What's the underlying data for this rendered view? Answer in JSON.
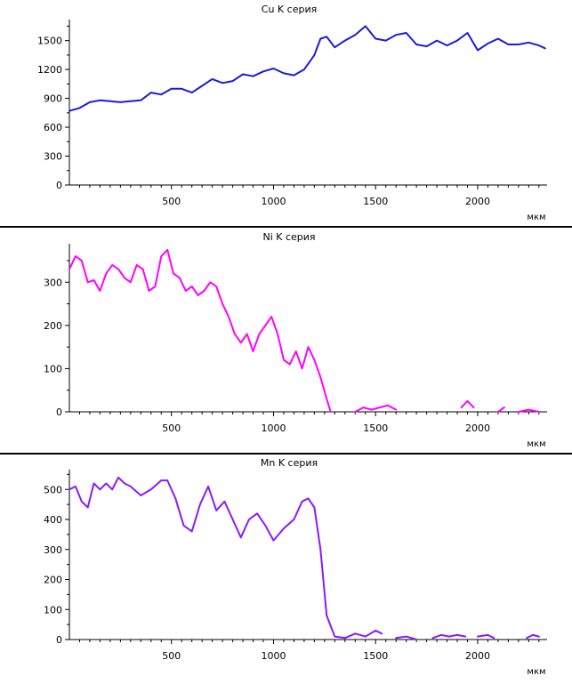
{
  "chart_data": [
    {
      "type": "line",
      "title": "Cu K серия",
      "xunit": "мкм",
      "xlim": [
        0,
        2340
      ],
      "ylim": [
        0,
        1700
      ],
      "xticks": [
        500,
        1000,
        1500,
        2000
      ],
      "yticks": [
        0,
        300,
        600,
        900,
        1200,
        1500
      ],
      "color": "#1a1adf",
      "x": [
        0,
        50,
        100,
        150,
        200,
        250,
        300,
        350,
        400,
        450,
        500,
        550,
        600,
        650,
        700,
        750,
        800,
        850,
        900,
        950,
        1000,
        1050,
        1100,
        1150,
        1200,
        1230,
        1260,
        1300,
        1350,
        1400,
        1450,
        1500,
        1550,
        1600,
        1650,
        1700,
        1750,
        1800,
        1850,
        1900,
        1950,
        2000,
        2050,
        2100,
        2150,
        2200,
        2250,
        2300,
        2330
      ],
      "y": [
        770,
        800,
        860,
        880,
        870,
        860,
        870,
        880,
        960,
        940,
        1000,
        1000,
        960,
        1030,
        1100,
        1060,
        1080,
        1150,
        1130,
        1180,
        1210,
        1160,
        1140,
        1200,
        1350,
        1520,
        1540,
        1430,
        1500,
        1560,
        1650,
        1520,
        1500,
        1560,
        1580,
        1460,
        1440,
        1500,
        1450,
        1500,
        1580,
        1400,
        1470,
        1520,
        1460,
        1460,
        1480,
        1450,
        1420
      ]
    },
    {
      "type": "line",
      "title": "Ni K серия",
      "xunit": "мкм",
      "xlim": [
        0,
        2340
      ],
      "ylim": [
        0,
        385
      ],
      "xticks": [
        500,
        1000,
        1500,
        2000
      ],
      "yticks": [
        0,
        100,
        200,
        300
      ],
      "color": "#ff00ff",
      "x": [
        0,
        30,
        60,
        90,
        120,
        150,
        180,
        210,
        240,
        270,
        300,
        330,
        360,
        390,
        420,
        450,
        480,
        510,
        540,
        570,
        600,
        630,
        660,
        690,
        720,
        750,
        780,
        810,
        840,
        870,
        900,
        930,
        960,
        990,
        1020,
        1050,
        1080,
        1110,
        1140,
        1170,
        1200,
        1230,
        1260,
        1280,
        null,
        1400,
        1440,
        1480,
        1520,
        1560,
        1600,
        null,
        1920,
        1950,
        1980,
        null,
        2100,
        2130,
        null,
        2200,
        2250,
        2300
      ],
      "y": [
        330,
        360,
        350,
        300,
        305,
        280,
        320,
        340,
        330,
        310,
        300,
        340,
        330,
        280,
        290,
        360,
        375,
        320,
        310,
        280,
        290,
        270,
        280,
        300,
        290,
        250,
        220,
        180,
        160,
        180,
        140,
        180,
        200,
        220,
        180,
        120,
        110,
        140,
        100,
        150,
        120,
        80,
        30,
        0,
        null,
        0,
        10,
        5,
        10,
        15,
        5,
        null,
        10,
        25,
        10,
        null,
        0,
        10,
        null,
        0,
        5,
        0
      ]
    },
    {
      "type": "line",
      "title": "Mn K серия",
      "xunit": "мкм",
      "xlim": [
        0,
        2340
      ],
      "ylim": [
        0,
        560
      ],
      "xticks": [
        500,
        1000,
        1500,
        2000
      ],
      "yticks": [
        0,
        100,
        200,
        300,
        400,
        500
      ],
      "color": "#8a1aff",
      "x": [
        0,
        30,
        60,
        90,
        120,
        150,
        180,
        210,
        240,
        270,
        300,
        350,
        400,
        450,
        480,
        520,
        560,
        600,
        640,
        680,
        720,
        760,
        800,
        840,
        880,
        920,
        960,
        1000,
        1050,
        1100,
        1140,
        1170,
        1200,
        1230,
        1260,
        1300,
        1350,
        1400,
        1450,
        1500,
        1530,
        null,
        1600,
        1650,
        1700,
        null,
        1780,
        1820,
        1860,
        1900,
        1940,
        null,
        2000,
        2050,
        2080,
        null,
        2240,
        2270,
        2300
      ],
      "y": [
        500,
        510,
        460,
        440,
        520,
        500,
        520,
        500,
        540,
        520,
        510,
        480,
        500,
        530,
        530,
        470,
        380,
        360,
        450,
        510,
        430,
        460,
        400,
        340,
        400,
        420,
        380,
        330,
        370,
        400,
        460,
        470,
        440,
        300,
        80,
        10,
        5,
        20,
        10,
        30,
        20,
        null,
        5,
        10,
        0,
        null,
        5,
        15,
        10,
        15,
        10,
        null,
        10,
        15,
        5,
        null,
        5,
        15,
        10
      ]
    }
  ]
}
